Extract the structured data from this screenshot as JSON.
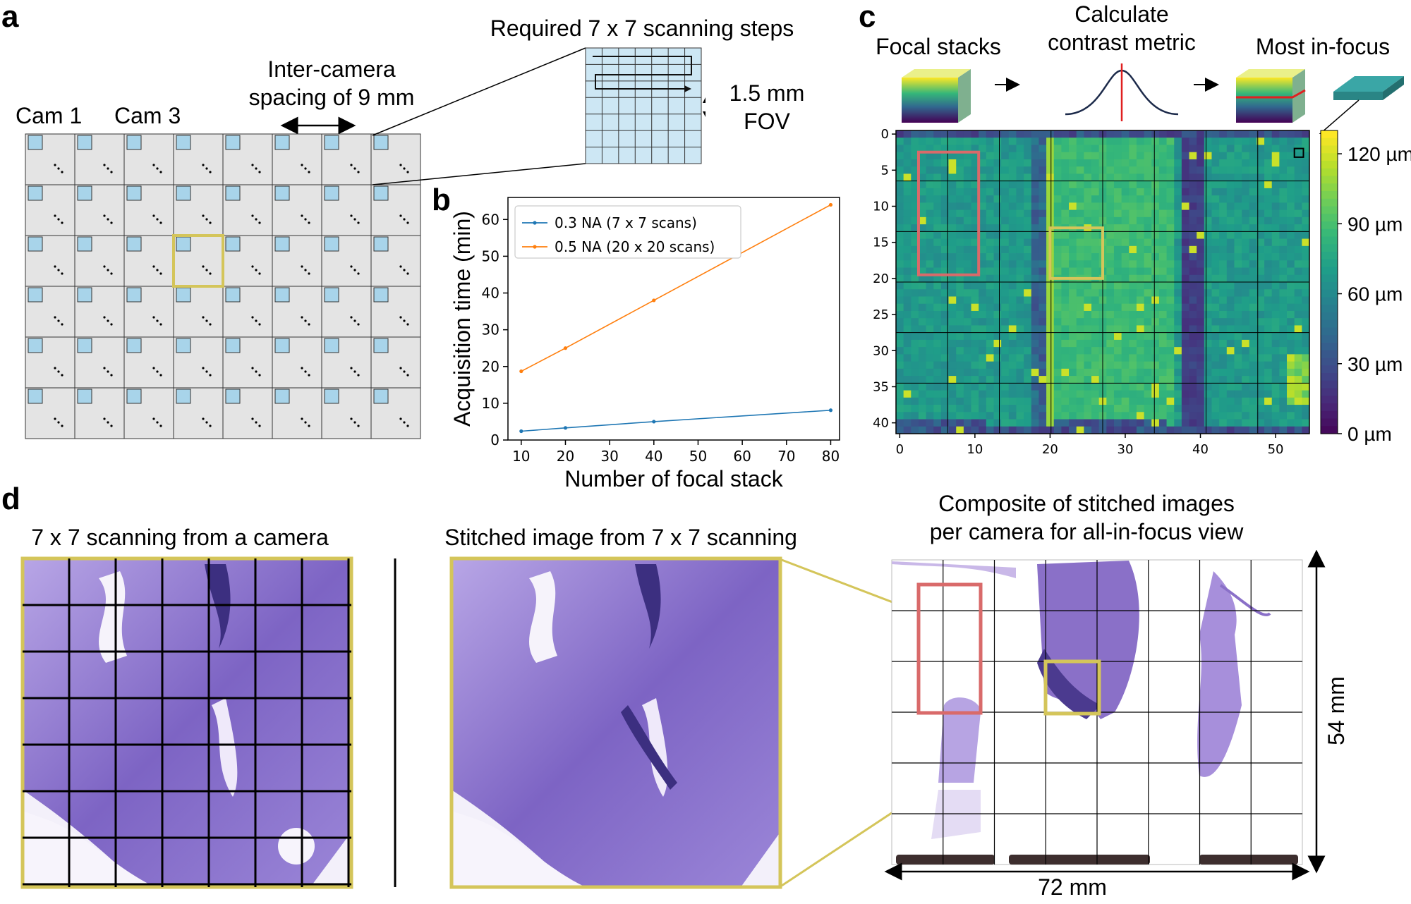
{
  "panel_labels": {
    "a": "a",
    "b": "b",
    "c": "c",
    "d": "d"
  },
  "panel_a": {
    "cam1": "Cam 1",
    "cam3": "Cam 3",
    "spacing_line1": "Inter-camera",
    "spacing_line2": "spacing of 9 mm",
    "scan_title": "Required 7 x 7 scanning steps",
    "fov_line1": "1.5 mm",
    "fov_line2": "FOV",
    "camera_grid": {
      "rows": 6,
      "cols": 8,
      "highlight_row": 2,
      "highlight_col": 3,
      "highlight_color": "#d4c55a"
    },
    "scan_grid": {
      "rows": 7,
      "cols": 7
    }
  },
  "panel_b": {
    "chart_data": {
      "type": "line",
      "x": [
        10,
        20,
        40,
        80
      ],
      "series": [
        {
          "name": "0.3 NA (7 x 7 scans)",
          "color": "#1f77b4",
          "values": [
            2.4,
            3.3,
            5.0,
            8.1
          ]
        },
        {
          "name": "0.5 NA (20 x 20 scans)",
          "color": "#ff7f0e",
          "values": [
            18.7,
            25.0,
            38.0,
            64.0
          ]
        }
      ],
      "xlabel": "Number of focal stack",
      "ylabel": "Acquisition time (min)",
      "xlim": [
        7,
        82
      ],
      "ylim": [
        0,
        66
      ],
      "xticks": [
        10,
        20,
        30,
        40,
        50,
        60,
        70,
        80
      ],
      "yticks": [
        0,
        10,
        20,
        30,
        40,
        50,
        60
      ],
      "legend": "top-left"
    }
  },
  "panel_c": {
    "step1": "Focal stacks",
    "step2_line1": "Calculate",
    "step2_line2": "contrast metric",
    "step3": "Most in-focus",
    "chart_data": {
      "type": "heatmap",
      "xlim": [
        0,
        55
      ],
      "ylim": [
        0,
        41
      ],
      "xticks": [
        0,
        10,
        20,
        30,
        40,
        50
      ],
      "yticks": [
        0,
        5,
        10,
        15,
        20,
        25,
        30,
        35,
        40
      ],
      "colorbar_label_values": [
        120,
        90,
        60,
        30,
        0
      ],
      "colorbar_labels": [
        "120 µm",
        "90 µm",
        "60 µm",
        "30 µm",
        "0 µm"
      ],
      "colorbar_range": [
        0,
        130
      ],
      "grid_cols": 8,
      "grid_rows": 6
    }
  },
  "panel_d": {
    "title1": "7 x 7 scanning from a camera",
    "title2": "Stitched image from 7 x 7 scanning",
    "title3_line1": "Composite of stitched images",
    "title3_line2": "per camera for all-in-focus view",
    "dim_height": "54 mm",
    "dim_width": "72 mm"
  },
  "colors": {
    "tissue": "#8a6ccf",
    "tissue_dark": "#4b3a8f",
    "yellow_box": "#d4c55a",
    "red_box": "#d96a6a",
    "tile_blue": "#a8d4ea",
    "sensor_gray": "#e4e4e4"
  }
}
